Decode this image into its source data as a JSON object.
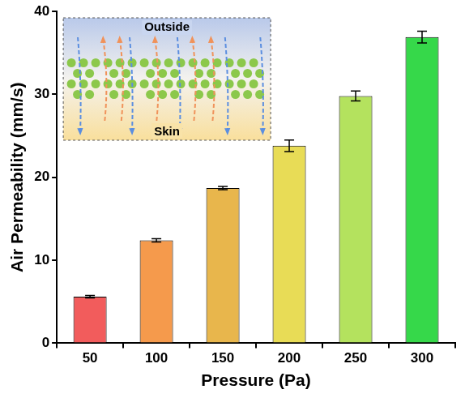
{
  "chart_data": {
    "type": "bar",
    "x_label": "Pressure (Pa)",
    "y_label": "Air Permeability (mm/s)",
    "categories": [
      "50",
      "100",
      "150",
      "200",
      "250",
      "300"
    ],
    "values": [
      5.6,
      12.4,
      18.7,
      23.8,
      29.8,
      36.9
    ],
    "errors": [
      0.15,
      0.2,
      0.2,
      0.7,
      0.6,
      0.7
    ],
    "colors": [
      "#f25c5c",
      "#f59a4c",
      "#e8b64c",
      "#e8dc56",
      "#b4e25e",
      "#36d84a"
    ],
    "ylim": [
      0,
      40
    ],
    "yticks": [
      0,
      10,
      20,
      30,
      40
    ],
    "grid": false,
    "annotations": [
      "Outside",
      "Skin"
    ]
  }
}
